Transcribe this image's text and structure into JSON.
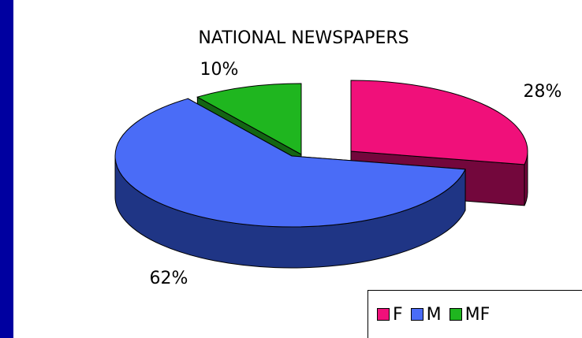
{
  "chart_data": {
    "type": "pie",
    "title": "NATIONAL NEWSPAPERS",
    "categories": [
      "F",
      "M",
      "MF"
    ],
    "values": [
      28,
      62,
      10
    ],
    "labels": [
      "28%",
      "62%",
      "10%"
    ],
    "colors": [
      "#f0107a",
      "#4a6cf7",
      "#1fb61f"
    ],
    "side_colors": [
      "#73073c",
      "#1f3585",
      "#146514"
    ],
    "legend_placement": "bottom-right",
    "three_d": true
  },
  "frame": {
    "border_color": "#0000a0"
  }
}
